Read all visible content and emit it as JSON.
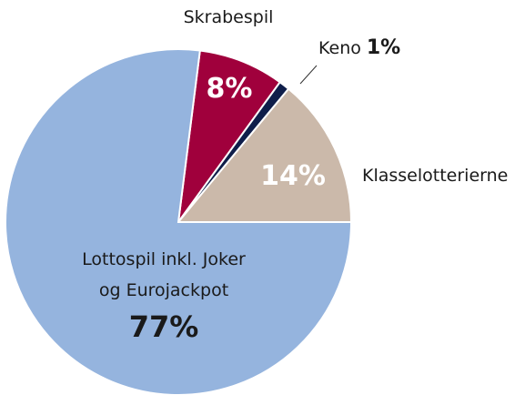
{
  "chart_data": {
    "type": "pie",
    "categories": [
      "Skrabespil",
      "Keno",
      "Klasselotterierne",
      "Lottospil inkl. Joker\nog Eurojackpot"
    ],
    "values": [
      8,
      1,
      14,
      77
    ],
    "value_labels": [
      "8%",
      "1%",
      "14%",
      "77%"
    ],
    "colors": [
      "#a0003c",
      "#0f1e4a",
      "#cbb9aa",
      "#95b4de"
    ]
  }
}
